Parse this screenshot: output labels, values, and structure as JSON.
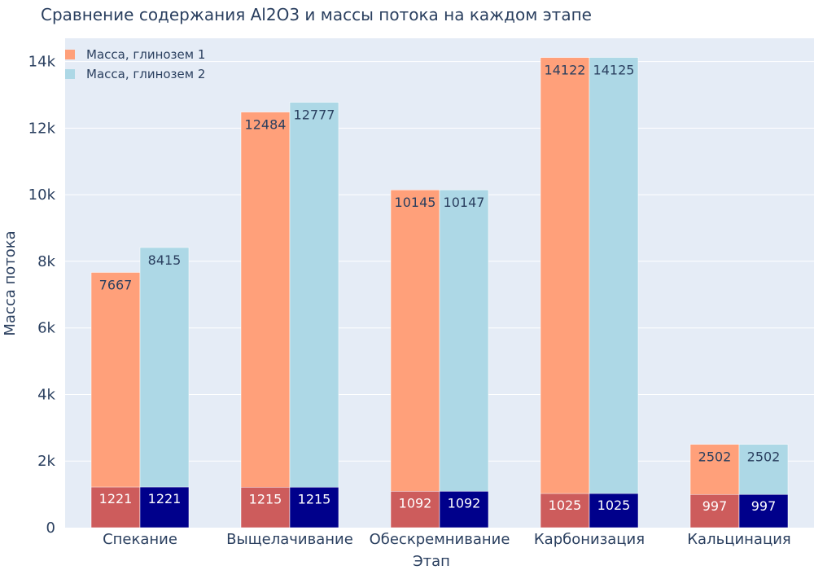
{
  "chart_data": {
    "type": "bar",
    "title": "Сравнение содержания Al2O3 и массы потока на каждом этапе",
    "xlabel": "Этап",
    "ylabel": "Масса потока",
    "categories": [
      "Спекание",
      "Выщелачивание",
      "Обескремнивание",
      "Карбонизация",
      "Кальцинация"
    ],
    "ylim": [
      0,
      14700
    ],
    "yticks": [
      0,
      2000,
      4000,
      6000,
      8000,
      10000,
      12000,
      14000
    ],
    "ytick_labels": [
      "0",
      "2k",
      "4k",
      "6k",
      "8k",
      "10k",
      "12k",
      "14k"
    ],
    "grid": true,
    "legend_position": "top-left",
    "series": [
      {
        "name": "Масса, глинозем 1",
        "values": [
          7667,
          12484,
          10145,
          14122,
          2502
        ],
        "color": "#ffa07a"
      },
      {
        "name": "Масса, глинозем 2",
        "values": [
          8415,
          12777,
          10147,
          14125,
          2502
        ],
        "color": "#add8e6"
      }
    ],
    "overlay_series": [
      {
        "values": [
          1221,
          1215,
          1092,
          1025,
          997
        ],
        "color": "#cd5c5c"
      },
      {
        "values": [
          1221,
          1215,
          1092,
          1025,
          997
        ],
        "color": "#00008b"
      }
    ],
    "plot_background": "#e5ecf6"
  }
}
